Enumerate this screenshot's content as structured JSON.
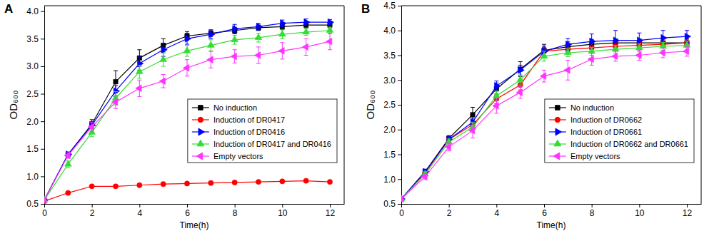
{
  "chart_data": [
    {
      "type": "line",
      "title": "A",
      "x_label": "Time(h)",
      "y_label": "OD₆₀₀",
      "x": [
        0,
        1,
        2,
        3,
        4,
        5,
        6,
        7,
        8,
        9,
        10,
        11,
        12
      ],
      "xlim": [
        0,
        12.6
      ],
      "xticks": [
        0,
        2,
        4,
        6,
        8,
        10,
        12
      ],
      "ylim": [
        0.5,
        4.1
      ],
      "yticks": [
        0.5,
        {
          "value": 1,
          "label": "1.0"
        },
        1.5,
        {
          "value": 2,
          "label": "2.0"
        },
        2.5,
        {
          "value": 3,
          "label": "3.0"
        },
        3.5,
        {
          "value": 4,
          "label": "4.0"
        }
      ],
      "legend": "lower right",
      "series": [
        {
          "name": "No induction",
          "color": "#000000",
          "marker": "square",
          "values": [
            0.57,
            1.4,
            1.95,
            2.72,
            3.15,
            3.38,
            3.55,
            3.6,
            3.65,
            3.7,
            3.72,
            3.75,
            3.75
          ],
          "errors": [
            0.02,
            0.04,
            0.08,
            0.2,
            0.15,
            0.12,
            0.08,
            0.06,
            0.06,
            0.05,
            0.05,
            0.05,
            0.05
          ]
        },
        {
          "name": "Induction of DR0417",
          "color": "#ff0000",
          "marker": "circle",
          "values": [
            0.55,
            0.7,
            0.82,
            0.82,
            0.84,
            0.86,
            0.87,
            0.88,
            0.89,
            0.9,
            0.91,
            0.92,
            0.9
          ],
          "errors": [
            0.02,
            0.02,
            0.02,
            0.02,
            0.02,
            0.02,
            0.02,
            0.02,
            0.02,
            0.02,
            0.02,
            0.02,
            0.02
          ]
        },
        {
          "name": "Induction of DR0416",
          "color": "#0000ff",
          "marker": "triangle-right",
          "values": [
            0.57,
            1.4,
            1.93,
            2.55,
            3.05,
            3.3,
            3.5,
            3.58,
            3.68,
            3.72,
            3.78,
            3.8,
            3.8
          ],
          "errors": [
            0.02,
            0.04,
            0.06,
            0.1,
            0.12,
            0.12,
            0.1,
            0.08,
            0.08,
            0.06,
            0.06,
            0.06,
            0.05
          ]
        },
        {
          "name": "Induction of DR0417 and DR0416",
          "color": "#33dd33",
          "marker": "triangle-up",
          "values": [
            0.57,
            1.22,
            1.8,
            2.42,
            2.9,
            3.12,
            3.28,
            3.38,
            3.48,
            3.52,
            3.58,
            3.62,
            3.65
          ],
          "errors": [
            0.02,
            0.06,
            0.08,
            0.12,
            0.12,
            0.12,
            0.1,
            0.1,
            0.08,
            0.08,
            0.08,
            0.06,
            0.06
          ]
        },
        {
          "name": "Empty vectors",
          "color": "#ff33ff",
          "marker": "triangle-left",
          "values": [
            0.57,
            1.38,
            1.9,
            2.35,
            2.6,
            2.73,
            2.97,
            3.12,
            3.18,
            3.2,
            3.28,
            3.35,
            3.45
          ],
          "errors": [
            0.02,
            0.05,
            0.08,
            0.12,
            0.15,
            0.12,
            0.15,
            0.15,
            0.12,
            0.15,
            0.15,
            0.15,
            0.15
          ]
        }
      ]
    },
    {
      "type": "line",
      "title": "B",
      "x_label": "Time(h)",
      "y_label": "OD₆₀₀",
      "x": [
        0,
        1,
        2,
        3,
        4,
        5,
        6,
        7,
        8,
        9,
        10,
        11,
        12
      ],
      "xlim": [
        0,
        12.6
      ],
      "xticks": [
        0,
        2,
        4,
        6,
        8,
        10,
        12
      ],
      "ylim": [
        0.5,
        4.5
      ],
      "yticks": [
        0.5,
        {
          "value": 1,
          "label": "1.0"
        },
        1.5,
        {
          "value": 2,
          "label": "2.0"
        },
        2.5,
        {
          "value": 3,
          "label": "3.0"
        },
        3.5,
        {
          "value": 4,
          "label": "4.0"
        },
        4.5
      ],
      "legend": "lower right",
      "series": [
        {
          "name": "No induction",
          "color": "#000000",
          "marker": "square",
          "values": [
            0.6,
            1.15,
            1.82,
            2.3,
            2.82,
            3.22,
            3.6,
            3.67,
            3.72,
            3.75,
            3.75,
            3.75,
            3.75
          ],
          "errors": [
            0.02,
            0.05,
            0.06,
            0.15,
            0.12,
            0.15,
            0.12,
            0.1,
            0.1,
            0.08,
            0.08,
            0.08,
            0.08
          ]
        },
        {
          "name": "Induction of DR0662",
          "color": "#ff0000",
          "marker": "circle",
          "values": [
            0.6,
            1.12,
            1.8,
            2.1,
            2.62,
            2.9,
            3.58,
            3.62,
            3.65,
            3.68,
            3.7,
            3.72,
            3.75
          ],
          "errors": [
            0.02,
            0.05,
            0.06,
            0.1,
            0.1,
            0.1,
            0.08,
            0.08,
            0.08,
            0.08,
            0.06,
            0.06,
            0.06
          ]
        },
        {
          "name": "Induction of DR0661",
          "color": "#0000ff",
          "marker": "triangle-right",
          "values": [
            0.6,
            1.15,
            1.8,
            2.15,
            2.88,
            3.2,
            3.58,
            3.72,
            3.78,
            3.8,
            3.8,
            3.85,
            3.88
          ],
          "errors": [
            0.02,
            0.05,
            0.06,
            0.08,
            0.1,
            0.1,
            0.1,
            0.12,
            0.15,
            0.2,
            0.15,
            0.15,
            0.12
          ]
        },
        {
          "name": "Induction of DR0662 and DR0661",
          "color": "#33dd33",
          "marker": "triangle-up",
          "values": [
            0.6,
            1.1,
            1.75,
            2.05,
            2.68,
            3.0,
            3.48,
            3.55,
            3.58,
            3.62,
            3.65,
            3.68,
            3.7
          ],
          "errors": [
            0.02,
            0.05,
            0.06,
            0.1,
            0.1,
            0.1,
            0.1,
            0.08,
            0.08,
            0.08,
            0.08,
            0.08,
            0.08
          ]
        },
        {
          "name": "Empty vectors",
          "color": "#ff33ff",
          "marker": "triangle-left",
          "values": [
            0.6,
            1.05,
            1.65,
            1.98,
            2.48,
            2.75,
            3.08,
            3.2,
            3.42,
            3.48,
            3.5,
            3.55,
            3.58
          ],
          "errors": [
            0.02,
            0.06,
            0.08,
            0.15,
            0.15,
            0.12,
            0.12,
            0.2,
            0.12,
            0.1,
            0.1,
            0.1,
            0.1
          ]
        }
      ]
    }
  ]
}
